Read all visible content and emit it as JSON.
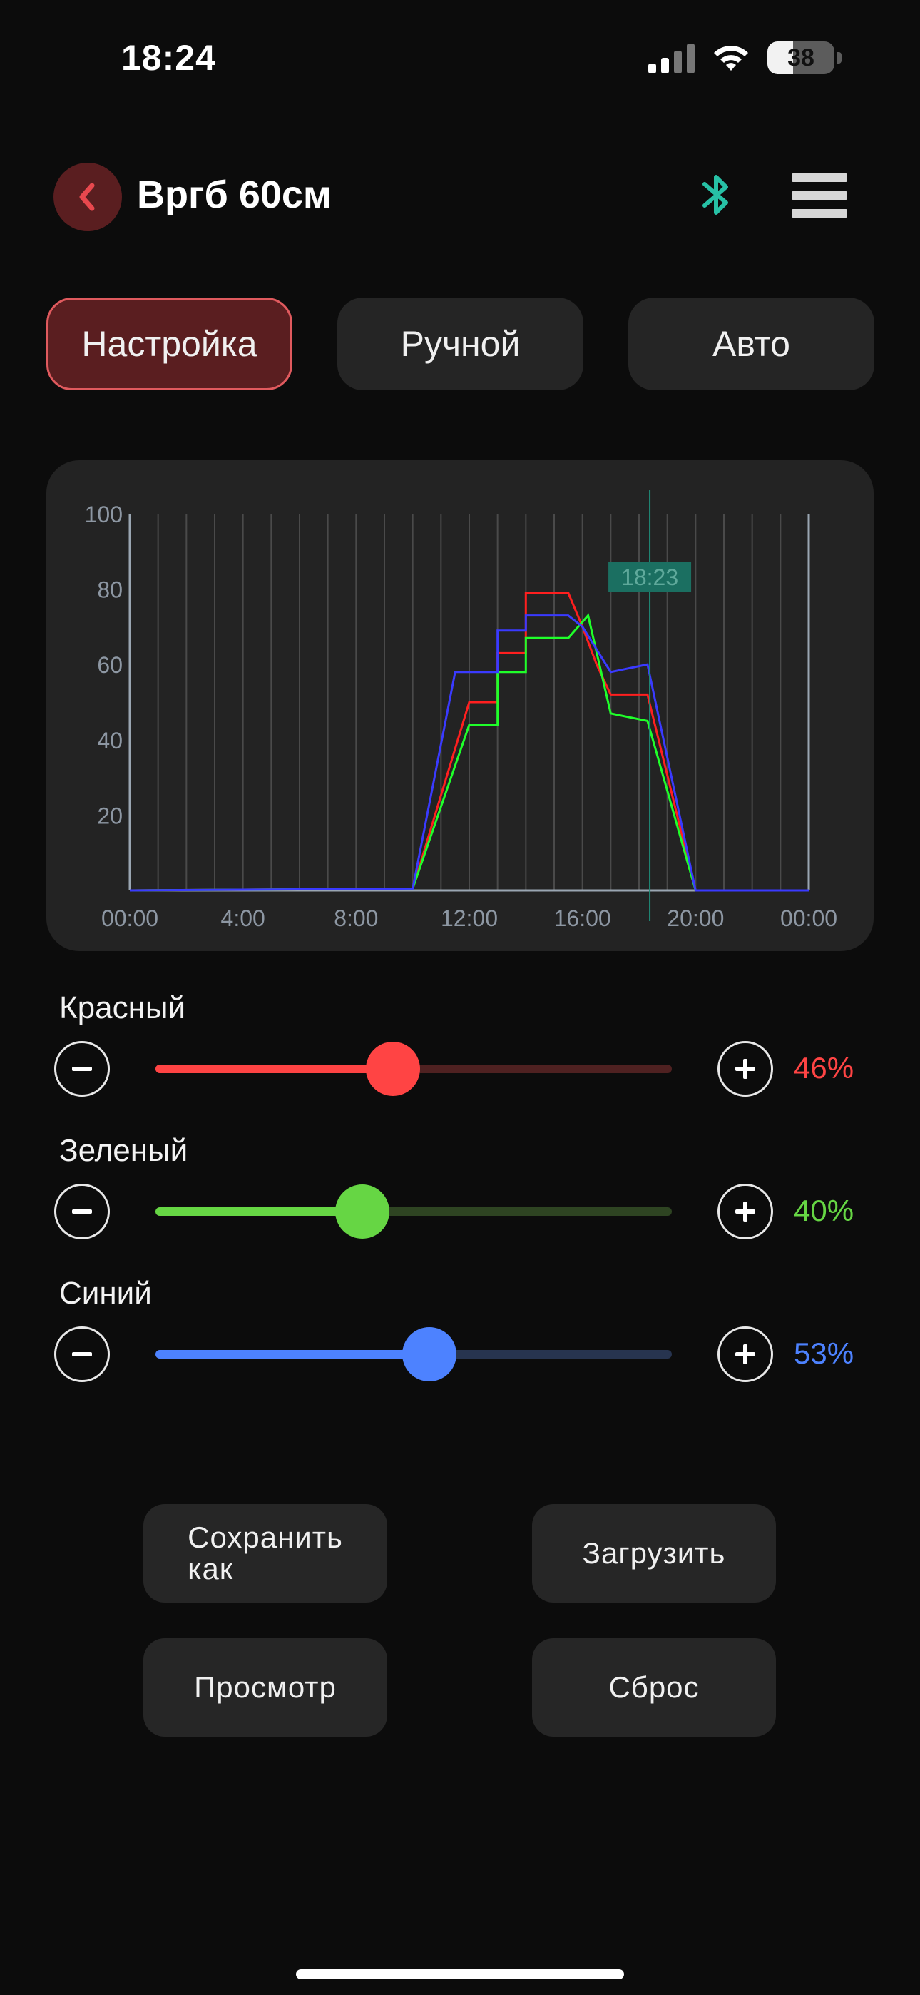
{
  "status_bar": {
    "time": "18:24",
    "battery": 38
  },
  "header": {
    "title": "Вргб 60см"
  },
  "tabs": [
    {
      "label": "Настройка",
      "active": true
    },
    {
      "label": "Ручной",
      "active": false
    },
    {
      "label": "Авто",
      "active": false
    }
  ],
  "chart_data": {
    "type": "line",
    "x_tick_labels": [
      "00:00",
      "4:00",
      "8:00",
      "12:00",
      "16:00",
      "20:00",
      "00:00"
    ],
    "y_ticks": [
      20,
      40,
      60,
      80,
      100
    ],
    "ylim": [
      0,
      100
    ],
    "xlim": [
      0,
      24
    ],
    "current_time_marker": {
      "label": "18:23",
      "x": 18.38
    },
    "series": [
      {
        "color": "#ff1f1f",
        "points": [
          [
            0,
            0
          ],
          [
            10,
            0.5
          ],
          [
            12,
            50
          ],
          [
            13,
            50
          ],
          [
            13,
            63
          ],
          [
            14,
            63
          ],
          [
            14,
            79
          ],
          [
            15.5,
            79
          ],
          [
            16,
            70
          ],
          [
            16.5,
            60
          ],
          [
            17,
            52
          ],
          [
            18.3,
            52
          ],
          [
            20,
            0
          ],
          [
            24,
            0
          ]
        ]
      },
      {
        "color": "#1fff2a",
        "points": [
          [
            0,
            0
          ],
          [
            10,
            0.5
          ],
          [
            12,
            44
          ],
          [
            13,
            44
          ],
          [
            13,
            58
          ],
          [
            14,
            58
          ],
          [
            14,
            67
          ],
          [
            15.5,
            67
          ],
          [
            16.2,
            73
          ],
          [
            17,
            47
          ],
          [
            18.3,
            45
          ],
          [
            20,
            0
          ],
          [
            24,
            0
          ]
        ]
      },
      {
        "color": "#3a3aff",
        "points": [
          [
            0,
            0
          ],
          [
            10,
            0.5
          ],
          [
            11.5,
            58
          ],
          [
            13,
            58
          ],
          [
            13,
            69
          ],
          [
            14,
            69
          ],
          [
            14,
            73
          ],
          [
            15.5,
            73
          ],
          [
            16,
            70
          ],
          [
            17,
            58
          ],
          [
            18.3,
            60
          ],
          [
            20,
            0
          ],
          [
            24,
            0
          ]
        ]
      }
    ]
  },
  "sliders": [
    {
      "label": "Красный",
      "value": 46,
      "value_text": "46%",
      "color": "#ff4444",
      "track_off": "#4f2121"
    },
    {
      "label": "Зеленый",
      "value": 40,
      "value_text": "40%",
      "color": "#66d644",
      "track_off": "#2e4422"
    },
    {
      "label": "Синий",
      "value": 53,
      "value_text": "53%",
      "color": "#4d82ff",
      "track_off": "#27344f"
    }
  ],
  "actions": {
    "save_as_line1": "Сохранить",
    "save_as_line2": "как",
    "load": "Загрузить",
    "preview": "Просмотр",
    "reset": "Сброс"
  }
}
